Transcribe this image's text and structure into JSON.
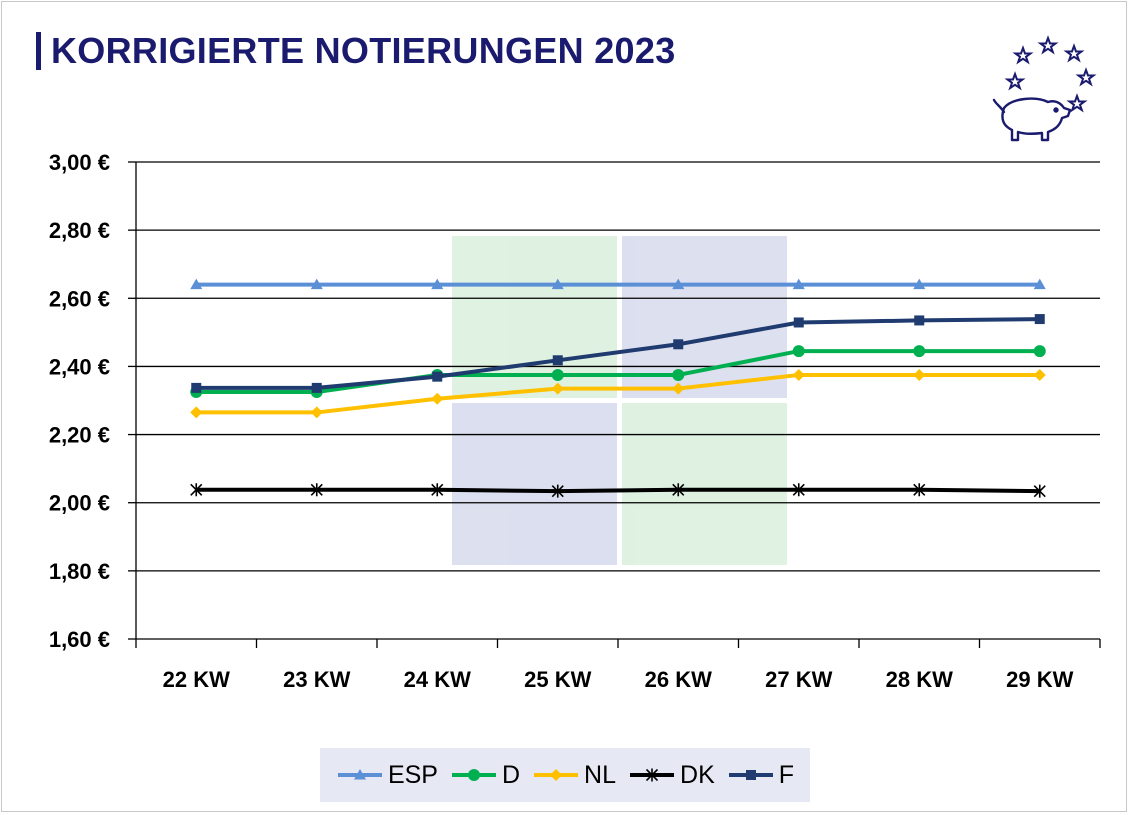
{
  "title": "KORRIGIERTE NOTIERUNGEN 2023",
  "chart_data": {
    "type": "line",
    "title": "KORRIGIERTE NOTIERUNGEN 2023",
    "categories": [
      "22 KW",
      "23 KW",
      "24 KW",
      "25 KW",
      "26 KW",
      "27 KW",
      "28 KW",
      "29 KW"
    ],
    "ylim": [
      1.6,
      3.0
    ],
    "yticks": [
      1.6,
      1.8,
      2.0,
      2.2,
      2.4,
      2.6,
      2.8,
      3.0
    ],
    "ytick_labels": [
      "1,60 €",
      "1,80 €",
      "2,00 €",
      "2,20 €",
      "2,40 €",
      "2,60 €",
      "2,80 €",
      "3,00 €"
    ],
    "grid": true,
    "legend": "bottom",
    "series": [
      {
        "name": "ESP",
        "color": "#5b8fd6",
        "marker": "triangle",
        "values": [
          2.64,
          2.64,
          2.64,
          2.64,
          2.64,
          2.64,
          2.64,
          2.64
        ]
      },
      {
        "name": "D",
        "color": "#00b050",
        "marker": "circle",
        "values": [
          2.325,
          2.325,
          2.375,
          2.375,
          2.375,
          2.445,
          2.445,
          2.445
        ]
      },
      {
        "name": "NL",
        "color": "#ffc000",
        "marker": "diamond",
        "values": [
          2.265,
          2.265,
          2.305,
          2.335,
          2.335,
          2.375,
          2.375,
          2.375
        ]
      },
      {
        "name": "DK",
        "color": "#000000",
        "marker": "star",
        "values": [
          2.038,
          2.038,
          2.038,
          2.034,
          2.038,
          2.038,
          2.038,
          2.034
        ]
      },
      {
        "name": "F",
        "color": "#1f3b6f",
        "marker": "square",
        "values": [
          2.337,
          2.337,
          2.37,
          2.418,
          2.465,
          2.529,
          2.535,
          2.539
        ]
      }
    ]
  }
}
